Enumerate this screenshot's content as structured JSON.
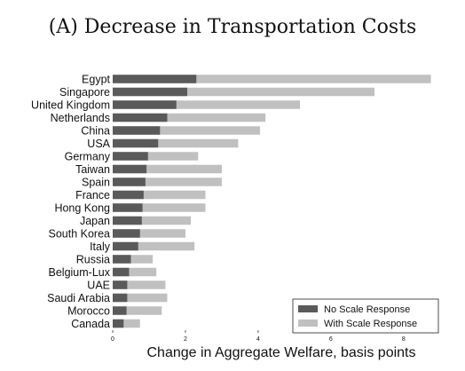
{
  "chart_data": {
    "type": "bar",
    "orientation": "horizontal",
    "stacked": false,
    "title": "(A) Decrease in Transportation Costs",
    "xlabel": "Change in Aggregate Welfare, basis points",
    "ylabel": "",
    "xlim": [
      0,
      9.2
    ],
    "xticks": [
      0,
      2,
      4,
      6,
      8
    ],
    "grid": false,
    "legend_position": "bottom-right",
    "categories": [
      "Egypt",
      "Singapore",
      "United Kingdom",
      "Netherlands",
      "China",
      "USA",
      "Germany",
      "Taiwan",
      "Spain",
      "France",
      "Hong Kong",
      "Japan",
      "South Korea",
      "Italy",
      "Russia",
      "Belgium-Lux",
      "UAE",
      "Saudi Arabia",
      "Morocco",
      "Canada"
    ],
    "series": [
      {
        "name": "No Scale Response",
        "color": "#5a5a5a",
        "values": [
          2.3,
          2.05,
          1.75,
          1.5,
          1.3,
          1.25,
          0.97,
          0.93,
          0.9,
          0.85,
          0.82,
          0.8,
          0.75,
          0.7,
          0.5,
          0.45,
          0.4,
          0.4,
          0.38,
          0.3
        ]
      },
      {
        "name": "With Scale Response",
        "color": "#c0c0c0",
        "values": [
          8.75,
          7.2,
          5.15,
          4.2,
          4.05,
          3.45,
          2.35,
          3.0,
          3.0,
          2.55,
          2.55,
          2.15,
          2.0,
          2.25,
          1.1,
          1.2,
          1.45,
          1.5,
          1.35,
          0.75
        ]
      }
    ]
  }
}
